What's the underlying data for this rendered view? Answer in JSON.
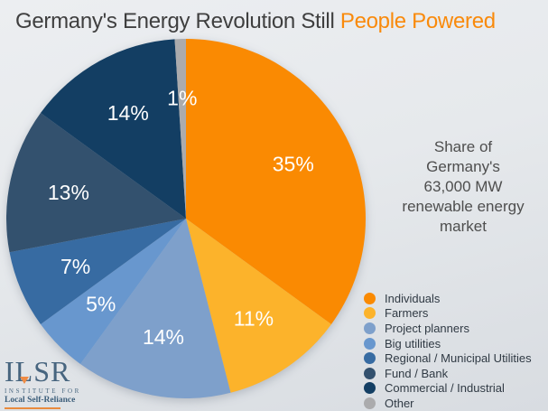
{
  "title": {
    "prefix": "Germany's Energy Revolution Still ",
    "highlight": "People Powered"
  },
  "caption": {
    "lines": [
      "Share of",
      "Germany's",
      "63,000 MW",
      "renewable energy",
      "market"
    ]
  },
  "chart_data": {
    "type": "pie",
    "title": "Share of Germany's 63,000 MW renewable energy market",
    "start_angle_deg": 0,
    "direction": "clockwise",
    "total_market_mw": "63,000 MW",
    "slices": [
      {
        "label": "Individuals",
        "value_pct": 35,
        "display": "35%",
        "color": "#FA8A02"
      },
      {
        "label": "Farmers",
        "value_pct": 11,
        "display": "11%",
        "color": "#FCB32B"
      },
      {
        "label": "Project planners",
        "value_pct": 14,
        "display": "14%",
        "color": "#7EA0CB"
      },
      {
        "label": "Big utilities",
        "value_pct": 5,
        "display": "5%",
        "color": "#6897CE"
      },
      {
        "label": "Regional / Municipal Utilities",
        "value_pct": 7,
        "display": "7%",
        "color": "#376BA2"
      },
      {
        "label": "Fund / Bank",
        "value_pct": 13,
        "display": "13%",
        "color": "#33516E"
      },
      {
        "label": "Commercial / Industrial",
        "value_pct": 14,
        "display": "14%",
        "color": "#133E63"
      },
      {
        "label": "Other",
        "value_pct": 1,
        "display": "1%",
        "color": "#ABABAD"
      }
    ],
    "legend_position": "bottom-right"
  },
  "logo": {
    "acronym": "ILSR",
    "institute": "INSTITUTE FOR",
    "name": "Local Self-Reliance"
  },
  "colors": {
    "accent_orange": "#F98A0B",
    "title_text": "#3F3F3F",
    "caption_text": "#4E4E4E",
    "legend_text": "#303A44",
    "pie_label_text": "#FFFFFF",
    "logo_blue": "#47657F",
    "logo_orange": "#E98A3D"
  }
}
